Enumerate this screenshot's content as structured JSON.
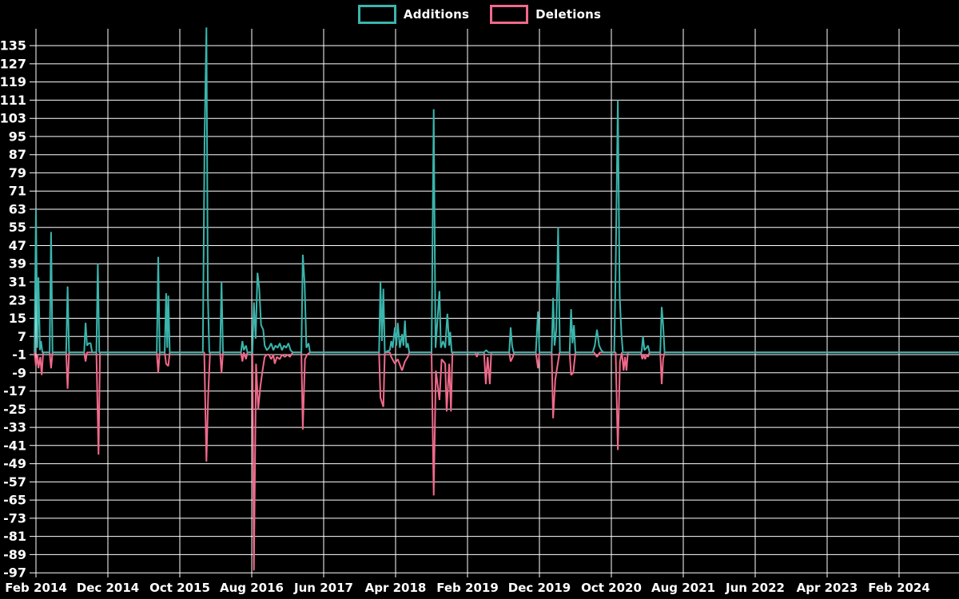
{
  "legend": {
    "additions_label": "Additions",
    "deletions_label": "Deletions"
  },
  "colors": {
    "background": "#000000",
    "grid": "#ffffff",
    "text": "#ffffff",
    "additions": "#3ab5ac",
    "deletions": "#f0698a"
  },
  "chart_data": {
    "type": "line",
    "title": "",
    "xlabel": "",
    "ylabel": "",
    "legend_position": "top-center",
    "grid": true,
    "x_axis": {
      "unit": "months since Feb 2014",
      "range_months": [
        -0.3,
        128.3
      ],
      "ticks": [
        {
          "label": "Feb 2014",
          "m": 0
        },
        {
          "label": "Dec 2014",
          "m": 10
        },
        {
          "label": "Oct 2015",
          "m": 20
        },
        {
          "label": "Aug 2016",
          "m": 30
        },
        {
          "label": "Jun 2017",
          "m": 40
        },
        {
          "label": "Apr 2018",
          "m": 50
        },
        {
          "label": "Feb 2019",
          "m": 60
        },
        {
          "label": "Dec 2019",
          "m": 70
        },
        {
          "label": "Oct 2020",
          "m": 80
        },
        {
          "label": "Aug 2021",
          "m": 90
        },
        {
          "label": "Jun 2022",
          "m": 100
        },
        {
          "label": "Apr 2023",
          "m": 110
        },
        {
          "label": "Feb 2024",
          "m": 120
        }
      ]
    },
    "y_axis": {
      "min": -97,
      "max": 135,
      "step": 8,
      "ticks": [
        135,
        127,
        119,
        111,
        103,
        95,
        87,
        79,
        71,
        63,
        55,
        47,
        39,
        31,
        23,
        15,
        7,
        -1,
        -9,
        -17,
        -25,
        -33,
        -41,
        -49,
        -57,
        -65,
        -73,
        -81,
        -89,
        -97
      ]
    },
    "series": [
      {
        "name": "Deletions",
        "color": "#f0698a",
        "points": [
          [
            -0.2,
            0
          ],
          [
            0,
            -6
          ],
          [
            0.2,
            -1
          ],
          [
            0.35,
            -7
          ],
          [
            0.6,
            -2
          ],
          [
            0.8,
            -10
          ],
          [
            1.0,
            0
          ],
          [
            1.9,
            0
          ],
          [
            2.1,
            -7
          ],
          [
            2.3,
            0
          ],
          [
            4.2,
            0
          ],
          [
            4.4,
            -16
          ],
          [
            4.6,
            0
          ],
          [
            6.7,
            0
          ],
          [
            6.9,
            -4
          ],
          [
            7.1,
            0
          ],
          [
            8.4,
            0
          ],
          [
            8.7,
            -45
          ],
          [
            8.9,
            0
          ],
          [
            16.8,
            0
          ],
          [
            17.0,
            -9
          ],
          [
            17.2,
            0
          ],
          [
            17.9,
            0
          ],
          [
            18.1,
            -5
          ],
          [
            18.4,
            -6
          ],
          [
            18.6,
            0
          ],
          [
            23.4,
            0
          ],
          [
            23.7,
            -48
          ],
          [
            23.95,
            -19
          ],
          [
            24.2,
            0
          ],
          [
            25.6,
            0
          ],
          [
            25.8,
            -9
          ],
          [
            26.0,
            0
          ],
          [
            28.5,
            0
          ],
          [
            28.7,
            -4
          ],
          [
            28.9,
            0
          ],
          [
            29.2,
            -3
          ],
          [
            29.4,
            0
          ],
          [
            30.1,
            0
          ],
          [
            30.3,
            -96
          ],
          [
            30.6,
            -5
          ],
          [
            30.9,
            -25
          ],
          [
            31.2,
            -15
          ],
          [
            31.5,
            -8
          ],
          [
            31.8,
            -2
          ],
          [
            32.1,
            -1
          ],
          [
            32.4,
            -1
          ],
          [
            32.7,
            -3
          ],
          [
            33.0,
            -1
          ],
          [
            33.2,
            -5
          ],
          [
            33.5,
            -2
          ],
          [
            33.9,
            -3
          ],
          [
            34.2,
            -1
          ],
          [
            34.6,
            -2
          ],
          [
            35.0,
            -1
          ],
          [
            35.3,
            -2
          ],
          [
            35.7,
            0
          ],
          [
            36.9,
            0
          ],
          [
            37.1,
            -34
          ],
          [
            37.4,
            -3
          ],
          [
            37.7,
            -1
          ],
          [
            38.1,
            0
          ],
          [
            47.7,
            0
          ],
          [
            47.9,
            -20
          ],
          [
            48.3,
            -24
          ],
          [
            48.5,
            0
          ],
          [
            49.2,
            0
          ],
          [
            49.4,
            -2
          ],
          [
            49.9,
            -5
          ],
          [
            50.3,
            -3
          ],
          [
            50.9,
            -8
          ],
          [
            51.3,
            -4
          ],
          [
            51.7,
            -2
          ],
          [
            51.9,
            0
          ],
          [
            55.0,
            0
          ],
          [
            55.3,
            -63
          ],
          [
            55.6,
            -8
          ],
          [
            56.1,
            -21
          ],
          [
            56.4,
            -3
          ],
          [
            56.9,
            -5
          ],
          [
            57.1,
            -26
          ],
          [
            57.45,
            -5
          ],
          [
            57.7,
            -26
          ],
          [
            57.9,
            0
          ],
          [
            61.1,
            0
          ],
          [
            61.3,
            -2
          ],
          [
            61.5,
            0
          ],
          [
            62.3,
            0
          ],
          [
            62.55,
            -14
          ],
          [
            62.8,
            -2
          ],
          [
            63.1,
            -14
          ],
          [
            63.3,
            0
          ],
          [
            65.8,
            0
          ],
          [
            66.0,
            -4
          ],
          [
            66.3,
            -2
          ],
          [
            66.5,
            0
          ],
          [
            69.5,
            0
          ],
          [
            69.8,
            -7
          ],
          [
            70.0,
            0
          ],
          [
            71.7,
            0
          ],
          [
            71.9,
            -29
          ],
          [
            72.2,
            -12
          ],
          [
            72.5,
            -6
          ],
          [
            72.8,
            0
          ],
          [
            74.2,
            0
          ],
          [
            74.4,
            -10
          ],
          [
            74.7,
            -9
          ],
          [
            75.0,
            0
          ],
          [
            77.6,
            0
          ],
          [
            78.0,
            -2
          ],
          [
            78.4,
            0
          ],
          [
            80.6,
            0
          ],
          [
            80.9,
            -43
          ],
          [
            81.2,
            -4
          ],
          [
            81.45,
            0
          ],
          [
            81.7,
            -8
          ],
          [
            81.9,
            -2
          ],
          [
            82.1,
            -8
          ],
          [
            82.3,
            0
          ],
          [
            84.1,
            0
          ],
          [
            84.3,
            -3
          ],
          [
            84.5,
            -1
          ],
          [
            84.7,
            -3
          ],
          [
            84.9,
            -1
          ],
          [
            85.1,
            -2
          ],
          [
            85.3,
            0
          ],
          [
            86.8,
            0
          ],
          [
            87.0,
            -14
          ],
          [
            87.2,
            -3
          ],
          [
            87.4,
            0
          ],
          [
            128.3,
            0
          ]
        ]
      },
      {
        "name": "Additions",
        "color": "#3ab5ac",
        "points": [
          [
            -0.2,
            0
          ],
          [
            0,
            63
          ],
          [
            0.2,
            2
          ],
          [
            0.35,
            33
          ],
          [
            0.55,
            1
          ],
          [
            0.7,
            5
          ],
          [
            0.9,
            0
          ],
          [
            1.9,
            0
          ],
          [
            2.1,
            53
          ],
          [
            2.3,
            0
          ],
          [
            4.2,
            0
          ],
          [
            4.4,
            29
          ],
          [
            4.6,
            0
          ],
          [
            6.7,
            0
          ],
          [
            6.9,
            13
          ],
          [
            7.1,
            3
          ],
          [
            7.35,
            4
          ],
          [
            7.6,
            4
          ],
          [
            7.8,
            0
          ],
          [
            8.4,
            0
          ],
          [
            8.6,
            39
          ],
          [
            8.8,
            0
          ],
          [
            16.8,
            0
          ],
          [
            17.0,
            42
          ],
          [
            17.2,
            0
          ],
          [
            17.9,
            0
          ],
          [
            18.1,
            26
          ],
          [
            18.25,
            2
          ],
          [
            18.4,
            25
          ],
          [
            18.6,
            0
          ],
          [
            23.2,
            0
          ],
          [
            23.45,
            95
          ],
          [
            23.7,
            143
          ],
          [
            23.9,
            25
          ],
          [
            24.1,
            0
          ],
          [
            25.6,
            0
          ],
          [
            25.8,
            31
          ],
          [
            26.0,
            0
          ],
          [
            28.5,
            0
          ],
          [
            28.7,
            5
          ],
          [
            28.9,
            1
          ],
          [
            29.2,
            3
          ],
          [
            29.4,
            0
          ],
          [
            30.1,
            0
          ],
          [
            30.3,
            22
          ],
          [
            30.55,
            6
          ],
          [
            30.8,
            35
          ],
          [
            31.05,
            28
          ],
          [
            31.3,
            12
          ],
          [
            31.6,
            10
          ],
          [
            31.8,
            3
          ],
          [
            32.1,
            1
          ],
          [
            32.4,
            2
          ],
          [
            32.7,
            4
          ],
          [
            33.0,
            1
          ],
          [
            33.3,
            3
          ],
          [
            33.6,
            2
          ],
          [
            33.9,
            4
          ],
          [
            34.2,
            1
          ],
          [
            34.5,
            3
          ],
          [
            34.8,
            2
          ],
          [
            35.1,
            4
          ],
          [
            35.4,
            1
          ],
          [
            35.7,
            0
          ],
          [
            36.9,
            0
          ],
          [
            37.1,
            43
          ],
          [
            37.35,
            30
          ],
          [
            37.6,
            2
          ],
          [
            37.9,
            4
          ],
          [
            38.1,
            0
          ],
          [
            47.7,
            0
          ],
          [
            47.9,
            31
          ],
          [
            48.1,
            5
          ],
          [
            48.3,
            28
          ],
          [
            48.5,
            0
          ],
          [
            49.2,
            1
          ],
          [
            49.4,
            5
          ],
          [
            49.6,
            2
          ],
          [
            49.9,
            11
          ],
          [
            50.1,
            3
          ],
          [
            50.3,
            13
          ],
          [
            50.6,
            2
          ],
          [
            50.9,
            8
          ],
          [
            51.1,
            3
          ],
          [
            51.3,
            14
          ],
          [
            51.5,
            2
          ],
          [
            51.7,
            4
          ],
          [
            51.9,
            0
          ],
          [
            55.0,
            0
          ],
          [
            55.3,
            107
          ],
          [
            55.55,
            2
          ],
          [
            56.1,
            27
          ],
          [
            56.3,
            2
          ],
          [
            56.6,
            5
          ],
          [
            56.9,
            2
          ],
          [
            57.2,
            17
          ],
          [
            57.45,
            3
          ],
          [
            57.6,
            9
          ],
          [
            57.8,
            0
          ],
          [
            62.3,
            0
          ],
          [
            62.6,
            1
          ],
          [
            62.9,
            0
          ],
          [
            65.8,
            0
          ],
          [
            66.0,
            11
          ],
          [
            66.2,
            3
          ],
          [
            66.4,
            0
          ],
          [
            69.5,
            0
          ],
          [
            69.8,
            18
          ],
          [
            70.0,
            0
          ],
          [
            71.7,
            0
          ],
          [
            71.9,
            24
          ],
          [
            72.1,
            3
          ],
          [
            72.35,
            10
          ],
          [
            72.6,
            55
          ],
          [
            72.85,
            0
          ],
          [
            74.2,
            0
          ],
          [
            74.4,
            19
          ],
          [
            74.6,
            4
          ],
          [
            74.8,
            12
          ],
          [
            75.0,
            0
          ],
          [
            77.4,
            0
          ],
          [
            77.7,
            3
          ],
          [
            78.0,
            10
          ],
          [
            78.3,
            3
          ],
          [
            78.6,
            1
          ],
          [
            78.9,
            0
          ],
          [
            80.4,
            0
          ],
          [
            80.6,
            37
          ],
          [
            80.9,
            111
          ],
          [
            81.15,
            25
          ],
          [
            81.4,
            8
          ],
          [
            81.6,
            0
          ],
          [
            84.2,
            0
          ],
          [
            84.4,
            7
          ],
          [
            84.6,
            1
          ],
          [
            84.9,
            2
          ],
          [
            85.1,
            3
          ],
          [
            85.3,
            0
          ],
          [
            86.8,
            0
          ],
          [
            87.0,
            20
          ],
          [
            87.2,
            12
          ],
          [
            87.4,
            0
          ],
          [
            128.3,
            0
          ]
        ]
      }
    ]
  }
}
